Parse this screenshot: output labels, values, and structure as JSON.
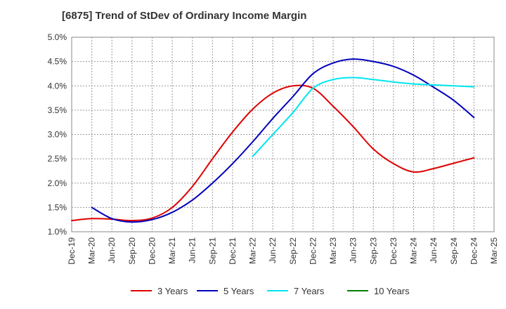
{
  "chart_data": {
    "type": "line",
    "title": "[6875]  Trend of StDev of Ordinary Income Margin",
    "xlabel": "",
    "ylabel": "",
    "x": [
      "Dec-19",
      "Mar-20",
      "Jun-20",
      "Sep-20",
      "Dec-20",
      "Mar-21",
      "Jun-21",
      "Sep-21",
      "Dec-21",
      "Mar-22",
      "Jun-22",
      "Sep-22",
      "Dec-22",
      "Mar-23",
      "Jun-23",
      "Sep-23",
      "Dec-23",
      "Mar-24",
      "Jun-24",
      "Sep-24",
      "Dec-24",
      "Mar-25"
    ],
    "ylim": [
      1.0,
      5.0
    ],
    "yticks": [
      "1.0%",
      "1.5%",
      "2.0%",
      "2.5%",
      "3.0%",
      "3.5%",
      "4.0%",
      "4.5%",
      "5.0%"
    ],
    "grid": true,
    "legend_position": "bottom",
    "series": [
      {
        "name": "3 Years",
        "color": "#dd0000",
        "values": [
          1.23,
          1.27,
          1.26,
          1.23,
          1.28,
          1.5,
          1.93,
          2.5,
          3.05,
          3.52,
          3.85,
          4.0,
          3.95,
          3.58,
          3.16,
          2.7,
          2.4,
          2.23,
          2.3,
          2.41,
          2.52,
          null
        ]
      },
      {
        "name": "5 Years",
        "color": "#0000bb",
        "values": [
          null,
          1.5,
          1.27,
          1.2,
          1.25,
          1.4,
          1.65,
          2.0,
          2.4,
          2.85,
          3.33,
          3.78,
          4.25,
          4.47,
          4.55,
          4.5,
          4.4,
          4.22,
          3.97,
          3.7,
          3.35,
          null
        ]
      },
      {
        "name": "7 Years",
        "color": "#00e5ee",
        "values": [
          null,
          null,
          null,
          null,
          null,
          null,
          null,
          null,
          null,
          2.55,
          3.0,
          3.45,
          3.95,
          4.13,
          4.17,
          4.13,
          4.08,
          4.04,
          4.02,
          4.0,
          3.98,
          null
        ]
      },
      {
        "name": "10 Years",
        "color": "#008000",
        "values": [
          null,
          null,
          null,
          null,
          null,
          null,
          null,
          null,
          null,
          null,
          null,
          null,
          null,
          null,
          null,
          null,
          null,
          null,
          null,
          null,
          null,
          null
        ]
      }
    ]
  }
}
